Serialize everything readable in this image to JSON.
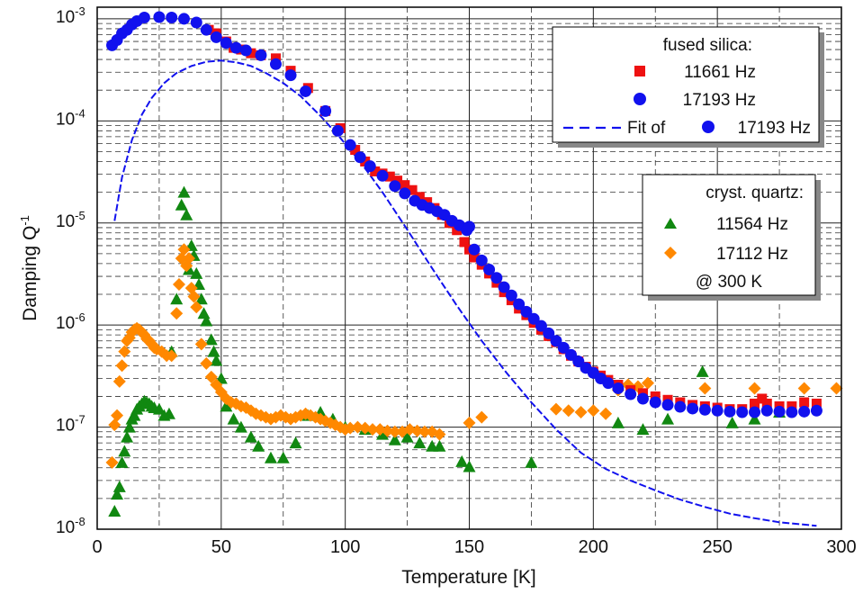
{
  "chart_data": {
    "type": "scatter",
    "xlabel": "Temperature [K]",
    "ylabel": "Damping Q",
    "ylabel_sup": "-1",
    "xlim": [
      0,
      300
    ],
    "ylim": [
      1e-08,
      0.0013
    ],
    "yscale": "log",
    "grid": true,
    "x_ticks": [
      0,
      50,
      100,
      150,
      200,
      250,
      300
    ],
    "x_tick_labels": [
      "0",
      "50",
      "100",
      "150",
      "200",
      "250",
      "300"
    ],
    "y_ticks": [
      1e-08,
      1e-07,
      1e-06,
      1e-05,
      0.0001,
      0.001
    ],
    "y_tick_labels": [
      {
        "base": "10",
        "exp": "-8"
      },
      {
        "base": "10",
        "exp": "-7"
      },
      {
        "base": "10",
        "exp": "-6"
      },
      {
        "base": "10",
        "exp": "-5"
      },
      {
        "base": "10",
        "exp": "-4"
      },
      {
        "base": "10",
        "exp": "-3"
      }
    ],
    "legends": [
      {
        "position": "top-right",
        "title": "fused silica:",
        "entries": [
          {
            "marker": "square",
            "color": "#ee1111",
            "label": "11661 Hz"
          },
          {
            "marker": "circle",
            "color": "#1111ee",
            "label": "17193 Hz"
          },
          {
            "marker": "dash-line-circle",
            "color": "#1111ee",
            "prefix": "Fit of",
            "label": "17193 Hz"
          }
        ]
      },
      {
        "position": "middle-right",
        "title": "cryst. quartz:",
        "entries": [
          {
            "marker": "triangle",
            "color": "#118811",
            "label": "11564 Hz"
          },
          {
            "marker": "diamond",
            "color": "#ff8800",
            "label": "17112 Hz"
          }
        ],
        "note": "@ 300 K"
      }
    ],
    "series": [
      {
        "name": "fused silica 11661 Hz",
        "marker": "square",
        "color": "#ee1111",
        "x": [
          45,
          48,
          52,
          55,
          58,
          62,
          66,
          72,
          78,
          85,
          92,
          98,
          104,
          108,
          112,
          115,
          118,
          121,
          124,
          127,
          130,
          133,
          136,
          139,
          142,
          145,
          148,
          150,
          152,
          155,
          158,
          161,
          164,
          167,
          170,
          173,
          176,
          179,
          182,
          185,
          188,
          191,
          194,
          197,
          200,
          203,
          206,
          210,
          215,
          220,
          225,
          230,
          235,
          240,
          245,
          250,
          255,
          260,
          265,
          268,
          270,
          275,
          280,
          285,
          290
        ],
        "y": [
          0.00078,
          0.00072,
          0.0006,
          0.00052,
          0.0005,
          0.00046,
          0.00044,
          0.00041,
          0.00031,
          0.00021,
          0.000125,
          8.5e-05,
          5.2e-05,
          4e-05,
          3.2e-05,
          3.05e-05,
          2.85e-05,
          2.6e-05,
          2.35e-05,
          2.1e-05,
          1.8e-05,
          1.6e-05,
          1.4e-05,
          1.2e-05,
          1e-05,
          8.5e-06,
          6.5e-06,
          5.5e-06,
          4.6e-06,
          3.9e-06,
          3.2e-06,
          2.6e-06,
          2.1e-06,
          1.75e-06,
          1.45e-06,
          1.25e-06,
          1.05e-06,
          9e-07,
          7.8e-07,
          6.8e-07,
          5.8e-07,
          5e-07,
          4.4e-07,
          3.9e-07,
          3.5e-07,
          3.2e-07,
          2.9e-07,
          2.6e-07,
          2.3e-07,
          2.15e-07,
          2e-07,
          1.85e-07,
          1.75e-07,
          1.65e-07,
          1.6e-07,
          1.55e-07,
          1.5e-07,
          1.5e-07,
          1.7e-07,
          1.9e-07,
          1.7e-07,
          1.6e-07,
          1.6e-07,
          1.75e-07,
          1.7e-07
        ]
      },
      {
        "name": "fused silica 17193 Hz",
        "marker": "circle",
        "color": "#1111ee",
        "x": [
          6,
          8,
          10,
          12,
          14,
          16,
          19,
          25,
          30,
          35,
          40,
          44,
          48,
          52,
          56,
          60,
          66,
          72,
          78,
          84,
          92,
          97,
          102,
          106,
          110,
          115,
          120,
          124,
          128,
          131,
          134,
          137,
          140,
          143,
          146,
          149,
          150,
          152,
          155,
          158,
          161,
          164,
          167,
          170,
          173,
          176,
          179,
          182,
          185,
          188,
          191,
          194,
          197,
          200,
          203,
          206,
          210,
          215,
          220,
          225,
          230,
          235,
          240,
          245,
          250,
          255,
          260,
          265,
          270,
          275,
          280,
          285,
          290
        ],
        "y": [
          0.00055,
          0.00062,
          0.00072,
          0.00078,
          0.00088,
          0.00095,
          0.00103,
          0.00104,
          0.00103,
          0.001,
          0.00092,
          0.00078,
          0.00066,
          0.00058,
          0.00052,
          0.00049,
          0.00044,
          0.00036,
          0.00028,
          0.000195,
          0.000125,
          8e-05,
          5.8e-05,
          4.4e-05,
          3.6e-05,
          2.9e-05,
          2.3e-05,
          1.95e-05,
          1.65e-05,
          1.5e-05,
          1.4e-05,
          1.3e-05,
          1.2e-05,
          1.05e-05,
          9.5e-06,
          8.5e-06,
          9.2e-06,
          5.5e-06,
          4.3e-06,
          3.5e-06,
          2.9e-06,
          2.35e-06,
          1.95e-06,
          1.6e-06,
          1.35e-06,
          1.15e-06,
          9.8e-07,
          8.3e-07,
          7e-07,
          6e-07,
          5.1e-07,
          4.4e-07,
          3.8e-07,
          3.4e-07,
          3e-07,
          2.7e-07,
          2.4e-07,
          2.1e-07,
          1.9e-07,
          1.75e-07,
          1.65e-07,
          1.58e-07,
          1.52e-07,
          1.48e-07,
          1.45e-07,
          1.42e-07,
          1.4e-07,
          1.4e-07,
          1.45e-07,
          1.42e-07,
          1.4e-07,
          1.42e-07,
          1.45e-07
        ]
      },
      {
        "name": "fit of 17193 Hz",
        "marker": "dashed-line",
        "color": "#1111ee",
        "x": [
          7,
          10,
          14,
          18,
          22,
          27,
          32,
          38,
          44,
          50,
          56,
          62,
          68,
          75,
          82,
          90,
          98,
          106,
          115,
          125,
          135,
          145,
          155,
          165,
          175,
          185,
          195,
          205,
          215,
          225,
          235,
          245,
          255,
          265,
          275,
          290
        ],
        "y": [
          1.05e-05,
          2.8e-05,
          6.5e-05,
          0.000115,
          0.000168,
          0.000235,
          0.000295,
          0.000345,
          0.00038,
          0.00039,
          0.000375,
          0.000345,
          0.000295,
          0.000235,
          0.000175,
          0.000112,
          6.8e-05,
          4e-05,
          2e-05,
          8.6e-06,
          3.6e-06,
          1.55e-06,
          7e-07,
          3.4e-07,
          1.75e-07,
          9.5e-08,
          5.6e-08,
          3.9e-08,
          3e-08,
          2.4e-08,
          1.95e-08,
          1.65e-08,
          1.42e-08,
          1.28e-08,
          1.17e-08,
          1.08e-08
        ]
      },
      {
        "name": "cryst. quartz 11564 Hz",
        "marker": "triangle",
        "color": "#118811",
        "x": [
          7,
          8,
          9,
          10,
          11,
          12,
          13,
          14,
          15,
          16,
          17,
          18,
          19,
          20,
          21,
          22,
          23,
          25,
          27,
          29,
          30,
          32,
          34,
          35,
          36,
          37,
          38,
          39,
          40,
          41,
          42,
          43,
          44,
          46,
          47,
          48,
          50,
          52,
          55,
          58,
          62,
          65,
          70,
          75,
          80,
          85,
          90,
          95,
          100,
          108,
          115,
          120,
          125,
          130,
          135,
          138,
          147,
          150,
          175,
          210,
          220,
          230,
          244,
          256,
          265,
          275
        ],
        "y": [
          1.5e-08,
          2.2e-08,
          2.6e-08,
          4.5e-08,
          5.8e-08,
          8e-08,
          1e-07,
          1.2e-07,
          1.3e-07,
          1.5e-07,
          1.6e-07,
          1.7e-07,
          1.8e-07,
          1.75e-07,
          1.7e-07,
          1.6e-07,
          1.55e-07,
          1.5e-07,
          1.3e-07,
          1.35e-07,
          5.5e-07,
          1.8e-06,
          1.5e-05,
          2e-05,
          1.2e-05,
          3.5e-06,
          6e-06,
          4.8e-06,
          3.2e-06,
          2.5e-06,
          1.8e-06,
          1.3e-06,
          1.1e-06,
          7.2e-07,
          5.5e-07,
          4.5e-07,
          3e-07,
          1.6e-07,
          1.2e-07,
          1e-07,
          8e-08,
          6.5e-08,
          5e-08,
          5e-08,
          7e-08,
          1.3e-07,
          1.4e-07,
          1.2e-07,
          1e-07,
          9.5e-08,
          8.5e-08,
          7.5e-08,
          8e-08,
          7e-08,
          6.5e-08,
          6.5e-08,
          4.6e-08,
          4.1e-08,
          4.5e-08,
          1.1e-07,
          9.5e-08,
          1.2e-07,
          3.5e-07,
          1.1e-07,
          1.2e-07,
          1.4e-07
        ]
      },
      {
        "name": "cryst. quartz 17112 Hz",
        "marker": "diamond",
        "color": "#ff8800",
        "x": [
          6,
          7,
          8,
          9,
          10,
          11,
          12,
          13,
          14,
          15,
          16,
          17,
          18,
          19,
          20,
          21,
          22,
          23,
          24,
          26,
          28,
          30,
          32,
          33,
          34,
          35,
          36,
          37,
          38,
          39,
          40,
          42,
          44,
          46,
          48,
          50,
          52,
          54,
          56,
          58,
          60,
          62,
          64,
          66,
          68,
          70,
          72,
          74,
          76,
          78,
          80,
          82,
          84,
          86,
          88,
          90,
          92,
          94,
          96,
          98,
          100,
          102,
          105,
          108,
          111,
          114,
          117,
          120,
          123,
          126,
          129,
          132,
          135,
          138,
          150,
          155,
          185,
          190,
          195,
          200,
          205,
          210,
          214,
          218,
          222,
          245,
          265,
          285,
          298
        ],
        "y": [
          4.5e-08,
          1.05e-07,
          1.3e-07,
          2.8e-07,
          4e-07,
          5.5e-07,
          7e-07,
          7.5e-07,
          8.5e-07,
          9e-07,
          9.3e-07,
          9e-07,
          8.5e-07,
          8e-07,
          7.3e-07,
          7e-07,
          6.5e-07,
          6e-07,
          5.8e-07,
          5.5e-07,
          5e-07,
          5e-07,
          1.3e-06,
          2.5e-06,
          4.5e-06,
          5.5e-06,
          3.8e-06,
          4.5e-06,
          2.3e-06,
          1.9e-06,
          1.5e-06,
          6.5e-07,
          4.2e-07,
          3.1e-07,
          2.6e-07,
          2.2e-07,
          1.9e-07,
          1.75e-07,
          1.7e-07,
          1.6e-07,
          1.55e-07,
          1.45e-07,
          1.35e-07,
          1.3e-07,
          1.25e-07,
          1.2e-07,
          1.25e-07,
          1.3e-07,
          1.25e-07,
          1.2e-07,
          1.25e-07,
          1.3e-07,
          1.35e-07,
          1.3e-07,
          1.25e-07,
          1.2e-07,
          1.15e-07,
          1.1e-07,
          1.05e-07,
          1e-07,
          9.5e-08,
          9.8e-08,
          1e-07,
          9.8e-08,
          9.5e-08,
          9.5e-08,
          9.2e-08,
          9e-08,
          9e-08,
          9.5e-08,
          9.2e-08,
          9e-08,
          9e-08,
          8.5e-08,
          1.1e-07,
          1.25e-07,
          1.5e-07,
          1.45e-07,
          1.4e-07,
          1.45e-07,
          1.35e-07,
          2.3e-07,
          2.6e-07,
          2.5e-07,
          2.7e-07,
          2.4e-07,
          2.4e-07,
          2.4e-07,
          2.4e-07
        ]
      }
    ]
  }
}
